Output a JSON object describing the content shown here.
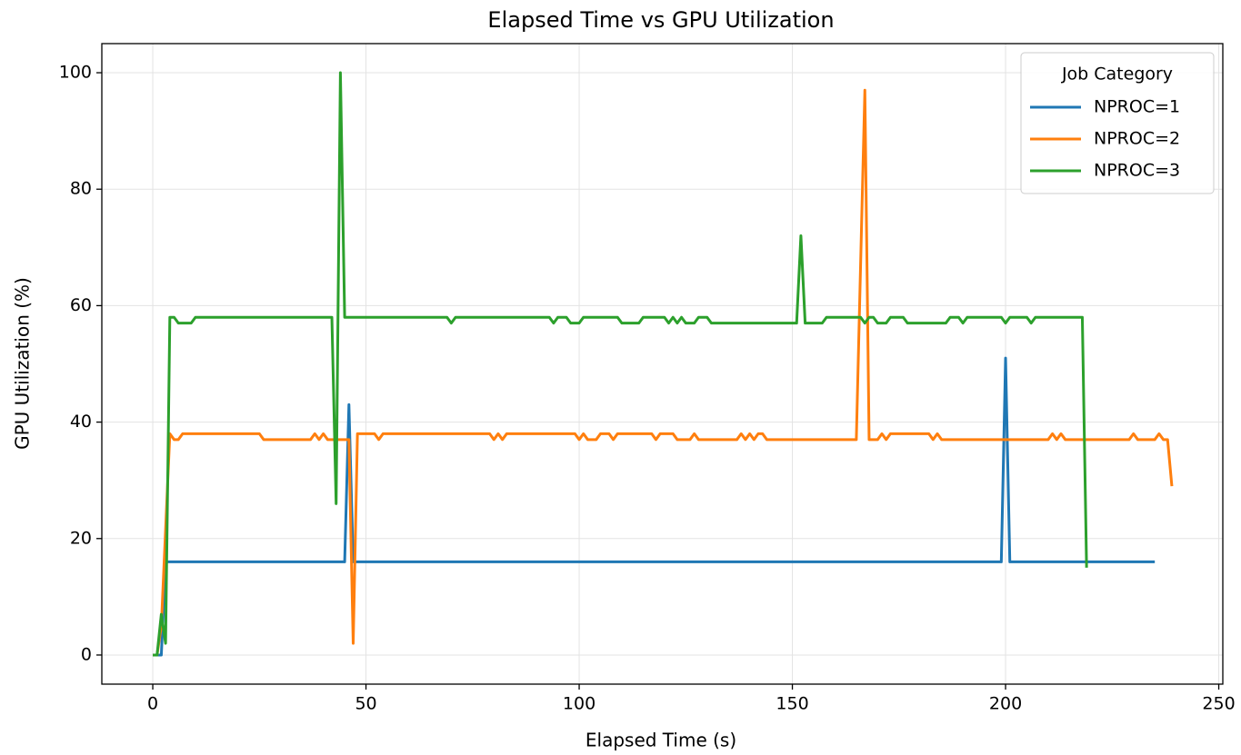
{
  "chart_data": {
    "type": "line",
    "title": "Elapsed Time vs GPU Utilization",
    "xlabel": "Elapsed Time (s)",
    "ylabel": "GPU Utilization (%)",
    "xlim": [
      -11.95,
      250.95
    ],
    "xticks": [
      0,
      50,
      100,
      150,
      200,
      250
    ],
    "ylim": [
      -5,
      105
    ],
    "yticks": [
      0,
      20,
      40,
      60,
      80,
      100
    ],
    "grid": true,
    "legend_title": "Job Category",
    "legend_loc": "upper right",
    "series": [
      {
        "name": "NPROC=1",
        "color": "#1f77b4",
        "x": [
          0,
          2,
          3,
          45,
          46,
          47,
          199,
          200,
          201,
          235
        ],
        "values": [
          0,
          0,
          16,
          16,
          43,
          16,
          16,
          51,
          16,
          16
        ]
      },
      {
        "name": "NPROC=2",
        "color": "#ff7f0e",
        "x": [
          0,
          1,
          2,
          4,
          5,
          6,
          7,
          25,
          26,
          37,
          38,
          39,
          40,
          41,
          46,
          47,
          48,
          52,
          53,
          54,
          79,
          80,
          81,
          82,
          83,
          99,
          100,
          101,
          102,
          104,
          105,
          107,
          108,
          109,
          117,
          118,
          119,
          122,
          123,
          126,
          127,
          128,
          137,
          138,
          139,
          140,
          141,
          142,
          143,
          144,
          165,
          167,
          168,
          170,
          171,
          172,
          173,
          182,
          183,
          184,
          185,
          210,
          211,
          212,
          213,
          214,
          229,
          230,
          231,
          235,
          236,
          237,
          238,
          239
        ],
        "values": [
          0,
          0,
          5,
          38,
          37,
          37,
          38,
          38,
          37,
          37,
          38,
          37,
          38,
          37,
          37,
          2,
          38,
          38,
          37,
          38,
          38,
          37,
          38,
          37,
          38,
          38,
          37,
          38,
          37,
          37,
          38,
          38,
          37,
          38,
          38,
          37,
          38,
          38,
          37,
          37,
          38,
          37,
          37,
          38,
          37,
          38,
          37,
          38,
          38,
          37,
          37,
          97,
          37,
          37,
          38,
          37,
          38,
          38,
          37,
          38,
          37,
          37,
          38,
          37,
          38,
          37,
          37,
          38,
          37,
          37,
          38,
          37,
          37,
          29
        ]
      },
      {
        "name": "NPROC=3",
        "color": "#2ca02c",
        "x": [
          0,
          1,
          2,
          3,
          4,
          5,
          6,
          9,
          10,
          42,
          43,
          44,
          45,
          69,
          70,
          71,
          93,
          94,
          95,
          97,
          98,
          100,
          101,
          109,
          110,
          114,
          115,
          120,
          121,
          122,
          123,
          124,
          125,
          127,
          128,
          130,
          131,
          151,
          152,
          153,
          157,
          158,
          166,
          167,
          168,
          169,
          170,
          172,
          173,
          176,
          177,
          186,
          187,
          189,
          190,
          191,
          199,
          200,
          201,
          205,
          206,
          207,
          218,
          219
        ],
        "values": [
          0,
          0,
          7,
          2,
          58,
          58,
          57,
          57,
          58,
          58,
          26,
          100,
          58,
          58,
          57,
          58,
          58,
          57,
          58,
          58,
          57,
          57,
          58,
          58,
          57,
          57,
          58,
          58,
          57,
          58,
          57,
          58,
          57,
          57,
          58,
          58,
          57,
          57,
          72,
          57,
          57,
          58,
          58,
          57,
          58,
          58,
          57,
          57,
          58,
          58,
          57,
          57,
          58,
          58,
          57,
          58,
          58,
          57,
          58,
          58,
          57,
          58,
          58,
          15
        ]
      }
    ]
  }
}
